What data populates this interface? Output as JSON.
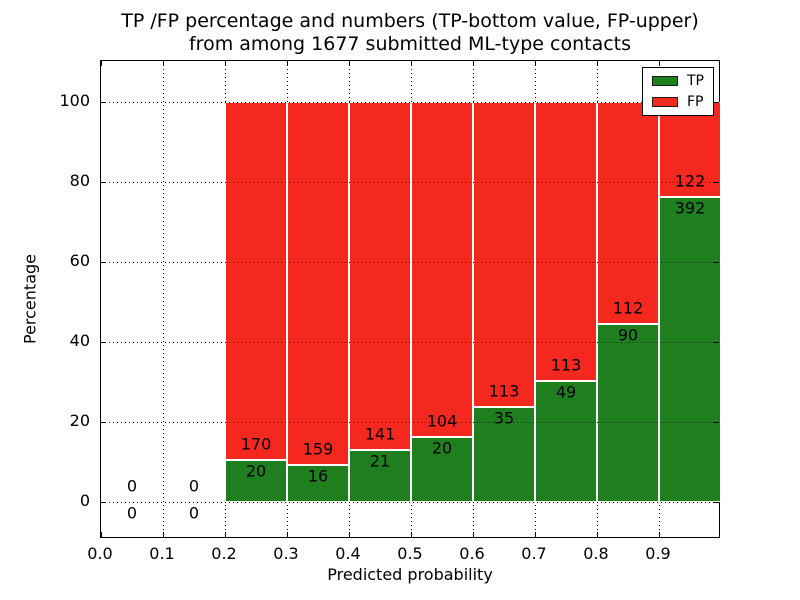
{
  "chart_data": {
    "type": "bar",
    "stacked": true,
    "grid": true,
    "title_line1": "TP /FP percentage and numbers (TP-bottom value, FP-upper)",
    "title_line2": "from among 1677 submitted ML-type contacts",
    "xlabel": "Predicted probability",
    "ylabel": "Percentage",
    "x_tick_values": [
      0.0,
      0.1,
      0.2,
      0.3,
      0.4,
      0.5,
      0.6,
      0.7,
      0.8,
      0.9
    ],
    "x_tick_labels": [
      "0.0",
      "0.1",
      "0.2",
      "0.3",
      "0.4",
      "0.5",
      "0.6",
      "0.7",
      "0.8",
      "0.9"
    ],
    "y_tick_values": [
      0,
      20,
      40,
      60,
      80,
      100
    ],
    "y_tick_labels": [
      "0",
      "20",
      "40",
      "60",
      "80",
      "100"
    ],
    "xlim": [
      0.0,
      1.0
    ],
    "ylim": [
      -9.25,
      110.25
    ],
    "bin_width": 0.1,
    "bars_total_height_pct": 100,
    "bins": [
      {
        "x_start": 0.0,
        "tp": 0,
        "fp": 0
      },
      {
        "x_start": 0.1,
        "tp": 0,
        "fp": 0
      },
      {
        "x_start": 0.2,
        "tp": 20,
        "fp": 170
      },
      {
        "x_start": 0.3,
        "tp": 16,
        "fp": 159
      },
      {
        "x_start": 0.4,
        "tp": 21,
        "fp": 141
      },
      {
        "x_start": 0.5,
        "tp": 20,
        "fp": 104
      },
      {
        "x_start": 0.6,
        "tp": 35,
        "fp": 113
      },
      {
        "x_start": 0.7,
        "tp": 49,
        "fp": 113
      },
      {
        "x_start": 0.8,
        "tp": 90,
        "fp": 112
      },
      {
        "x_start": 0.9,
        "tp": 392,
        "fp": 122
      }
    ],
    "series": [
      {
        "name": "TP",
        "color": "#1f7f1f"
      },
      {
        "name": "FP",
        "color": "#f4281e"
      }
    ],
    "legend_position": "upper right",
    "axis_color": "#000000",
    "background_color": "#ffffff"
  }
}
